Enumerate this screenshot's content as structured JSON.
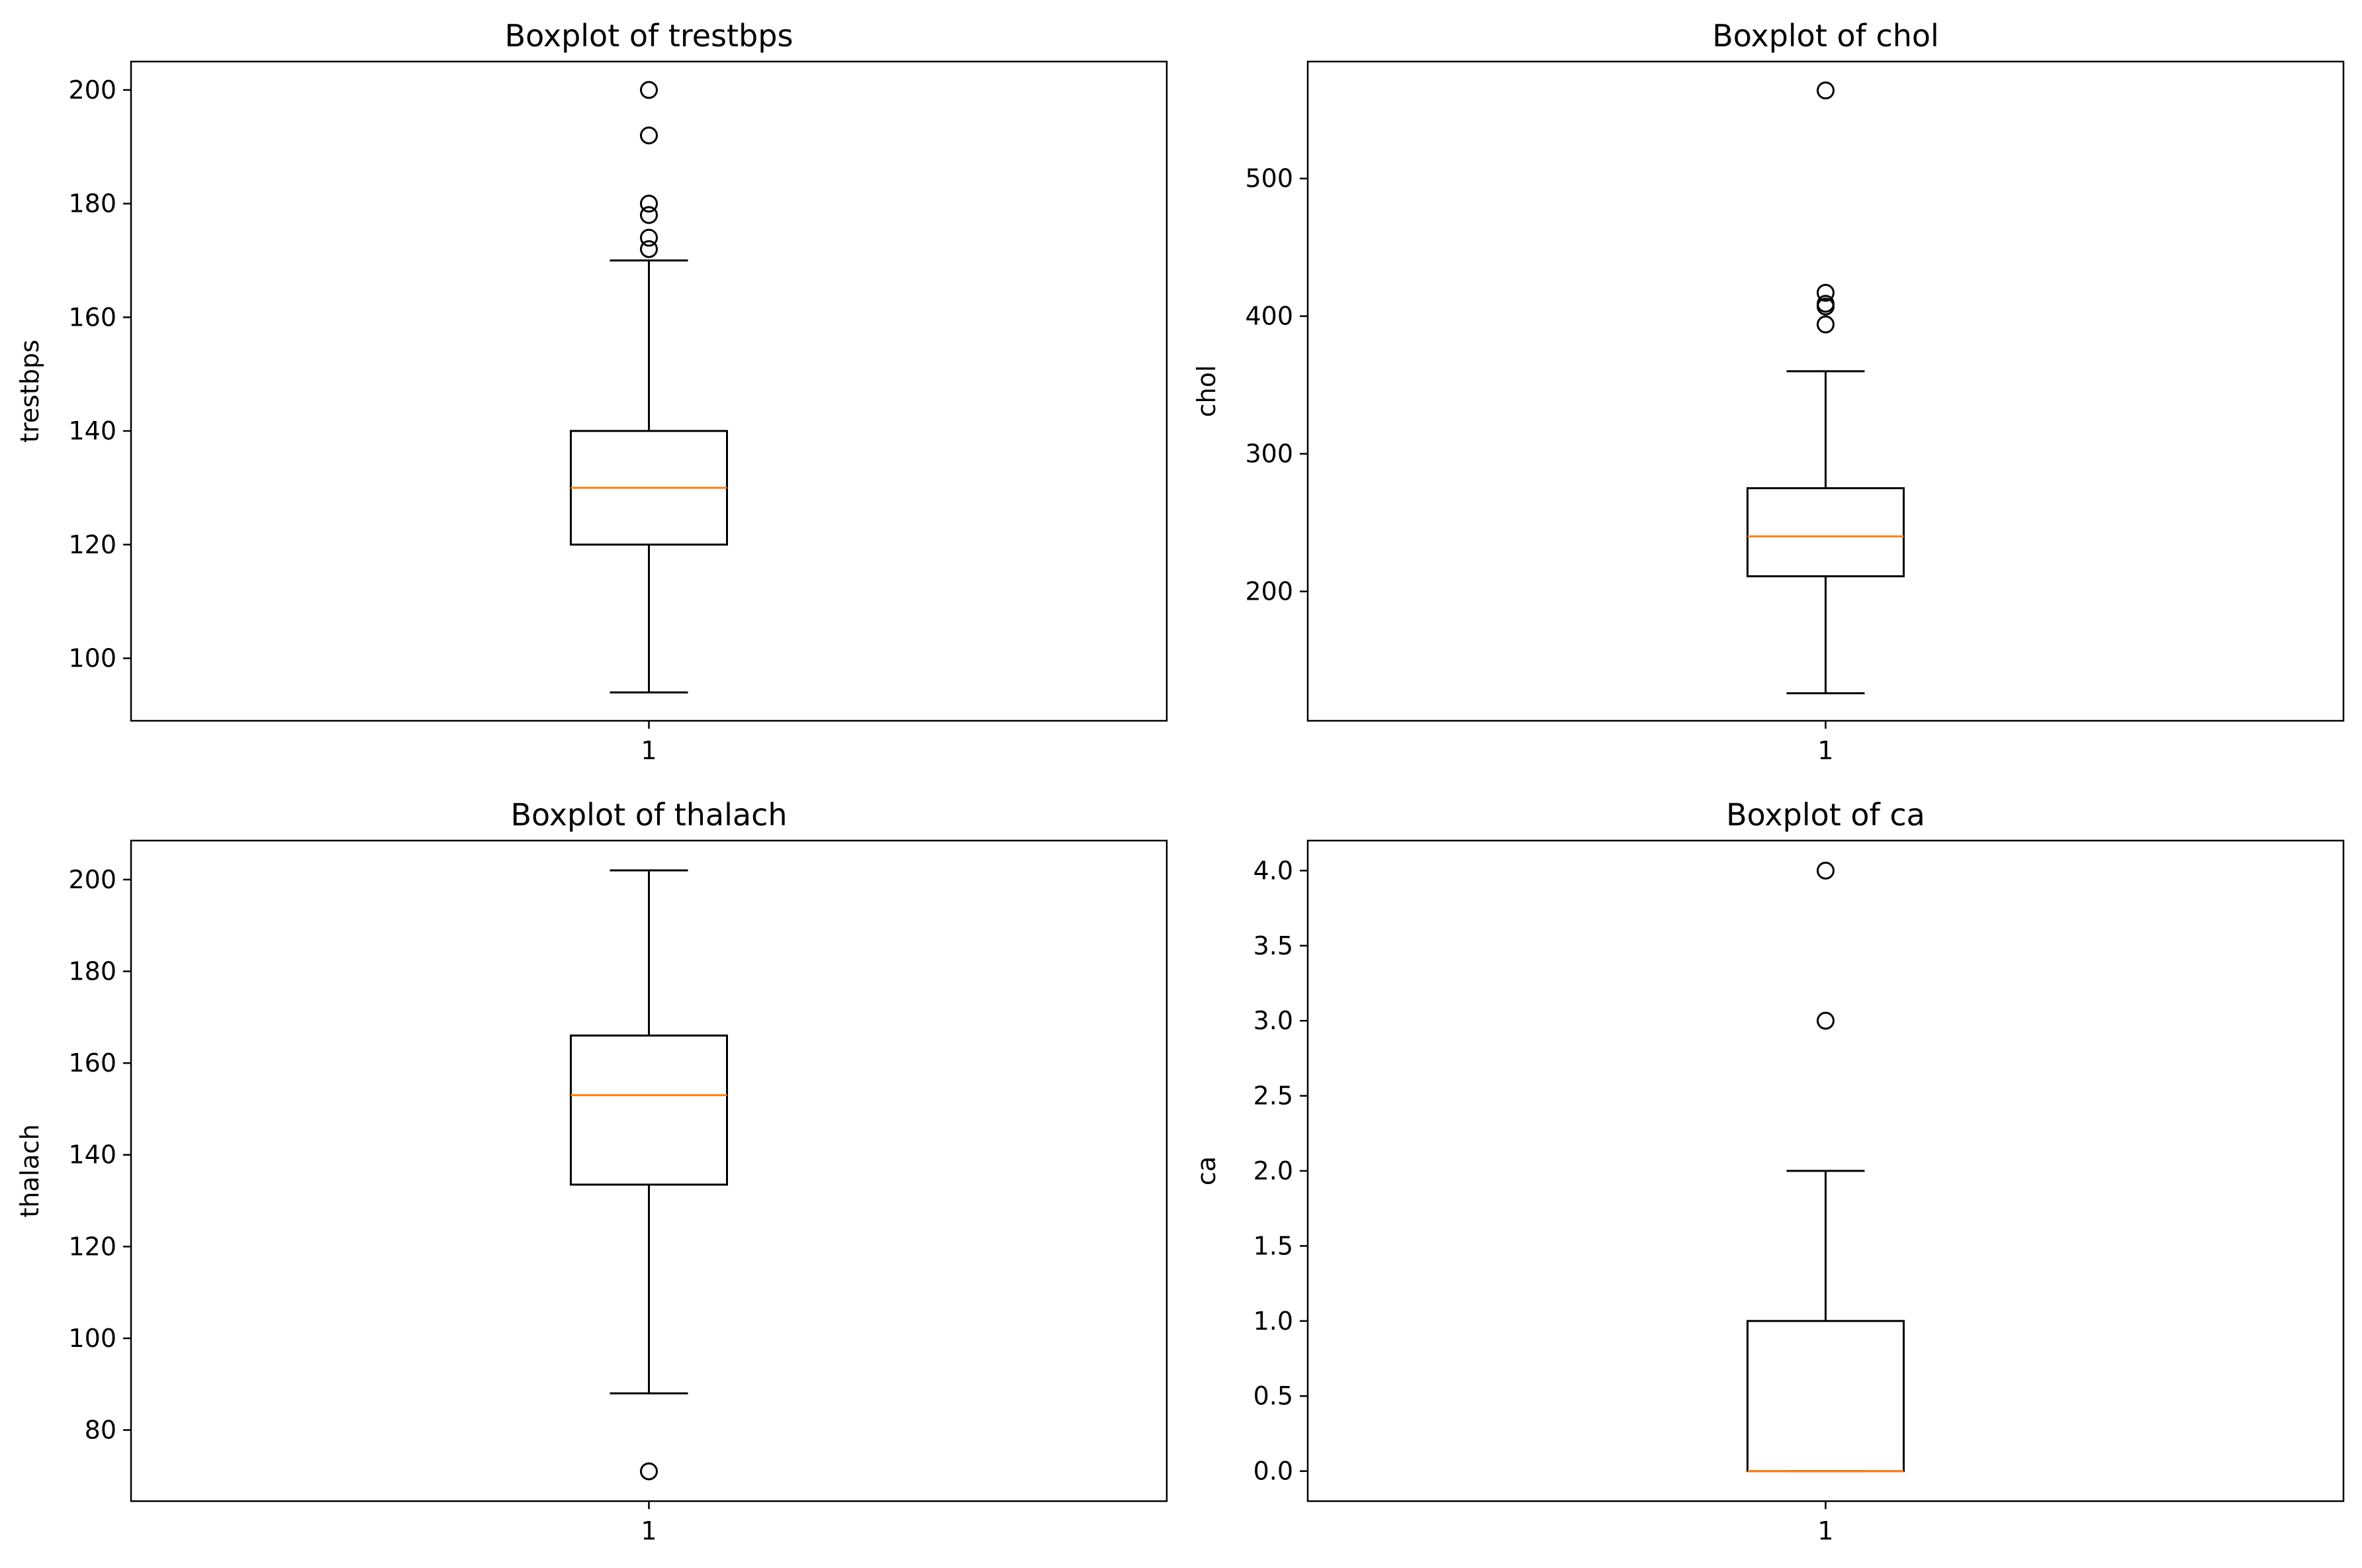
{
  "chart_data": [
    {
      "type": "boxplot",
      "title": "Boxplot of trestbps",
      "xlabel": "",
      "ylabel": "trestbps",
      "categories": [
        "1"
      ],
      "ylim": [
        89,
        205
      ],
      "yticks": [
        100,
        120,
        140,
        160,
        180,
        200
      ],
      "box": {
        "whisker_low": 94,
        "q1": 120,
        "median": 130,
        "q3": 140,
        "whisker_high": 170
      },
      "outliers": [
        172,
        174,
        178,
        180,
        192,
        200
      ]
    },
    {
      "type": "boxplot",
      "title": "Boxplot of chol",
      "xlabel": "",
      "ylabel": "chol",
      "categories": [
        "1"
      ],
      "ylim": [
        106,
        585
      ],
      "yticks": [
        200,
        300,
        400,
        500
      ],
      "box": {
        "whisker_low": 126,
        "q1": 211,
        "median": 240,
        "q3": 275,
        "whisker_high": 360
      },
      "outliers": [
        394,
        407,
        409,
        417,
        564
      ]
    },
    {
      "type": "boxplot",
      "title": "Boxplot of thalach",
      "xlabel": "",
      "ylabel": "thalach",
      "categories": [
        "1"
      ],
      "ylim": [
        64.5,
        208.5
      ],
      "yticks": [
        80,
        100,
        120,
        140,
        160,
        180,
        200
      ],
      "box": {
        "whisker_low": 88,
        "q1": 133.5,
        "median": 153,
        "q3": 166,
        "whisker_high": 202
      },
      "outliers": [
        71
      ]
    },
    {
      "type": "boxplot",
      "title": "Boxplot of ca",
      "xlabel": "",
      "ylabel": "ca",
      "categories": [
        "1"
      ],
      "ylim": [
        -0.2,
        4.2
      ],
      "yticks": [
        "0.0",
        "0.5",
        "1.0",
        "1.5",
        "2.0",
        "2.5",
        "3.0",
        "3.5",
        "4.0"
      ],
      "box": {
        "whisker_low": 0,
        "q1": 0,
        "median": 0,
        "q3": 1,
        "whisker_high": 2
      },
      "outliers": [
        3,
        4
      ]
    }
  ],
  "colors": {
    "median": "#ff7f0e",
    "axes": "#000000",
    "background": "#ffffff"
  }
}
